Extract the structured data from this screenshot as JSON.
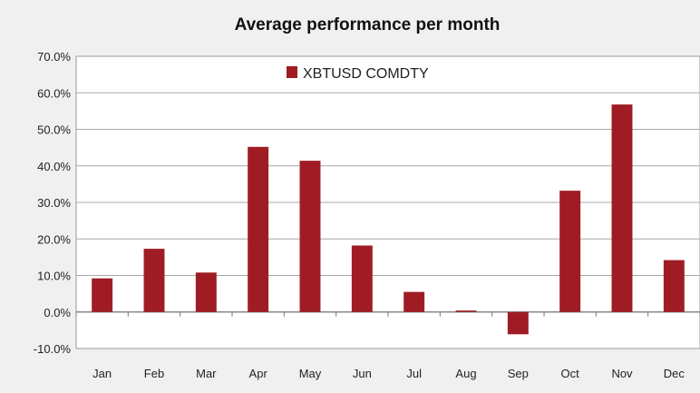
{
  "chart_data": {
    "type": "bar",
    "title": "Average performance per month",
    "categories": [
      "Jan",
      "Feb",
      "Mar",
      "Apr",
      "May",
      "Jun",
      "Jul",
      "Aug",
      "Sep",
      "Oct",
      "Nov",
      "Dec"
    ],
    "series": [
      {
        "name": "XBTUSD COMDTY",
        "color": "#a01c24",
        "values": [
          9.2,
          17.3,
          10.8,
          45.2,
          41.4,
          18.2,
          5.5,
          0.4,
          -6.1,
          33.2,
          56.8,
          14.2
        ]
      }
    ],
    "y_unit": "%",
    "ylim": [
      -10,
      70
    ],
    "y_ticks": [
      -10,
      0,
      10,
      20,
      30,
      40,
      50,
      60,
      70
    ],
    "y_tick_labels": [
      "-10.0%",
      "0.0%",
      "10.0%",
      "20.0%",
      "30.0%",
      "40.0%",
      "50.0%",
      "60.0%",
      "70.0%"
    ],
    "grid": true,
    "legend_position": "top-center",
    "xlabel": "",
    "ylabel": ""
  }
}
